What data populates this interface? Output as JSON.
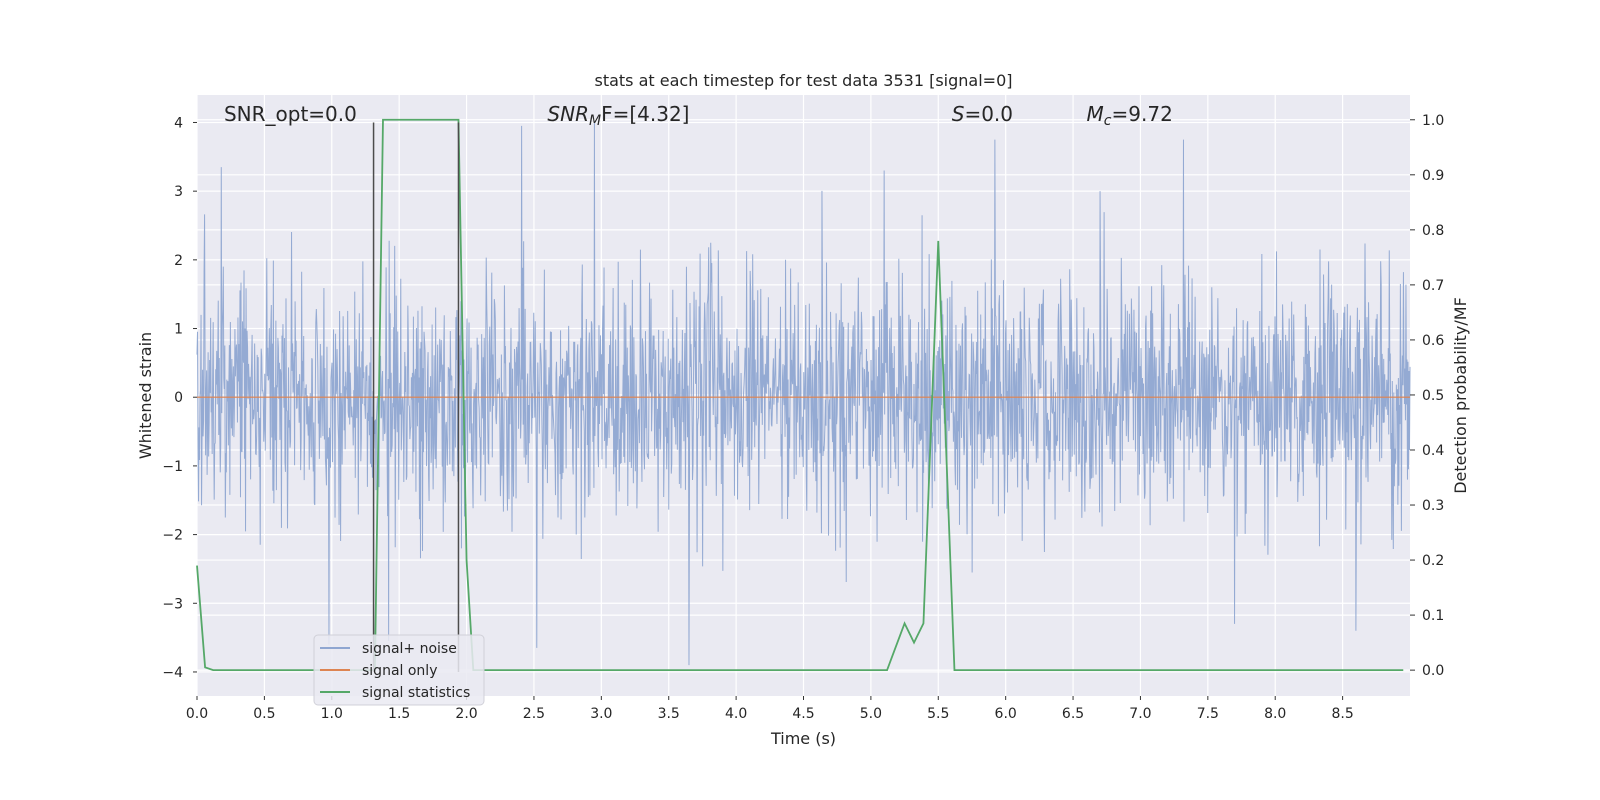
{
  "chart_data": {
    "type": "line",
    "title": "stats at each timestep for test data 3531 [signal=0]",
    "xlabel": "Time (s)",
    "ylabel": "Whitened strain",
    "y2label": "Detection probability/MF",
    "xlim": [
      0.0,
      9.0
    ],
    "ylim": [
      -4.35,
      4.4
    ],
    "y2lim": [
      -0.047,
      1.045
    ],
    "xticks": [
      "0.0",
      "0.5",
      "1.0",
      "1.5",
      "2.0",
      "2.5",
      "3.0",
      "3.5",
      "4.0",
      "4.5",
      "5.0",
      "5.5",
      "6.0",
      "6.5",
      "7.0",
      "7.5",
      "8.0",
      "8.5"
    ],
    "yticks": [
      "−4",
      "−3",
      "−2",
      "−1",
      "0",
      "1",
      "2",
      "3",
      "4"
    ],
    "y2ticks": [
      "0.0",
      "0.1",
      "0.2",
      "0.3",
      "0.4",
      "0.5",
      "0.6",
      "0.7",
      "0.8",
      "0.9",
      "1.0"
    ],
    "grid": true,
    "legend_position": "lower-left",
    "annotations": [
      {
        "prefix": "SNR_opt=0.0",
        "italic": "",
        "sub": "",
        "suffix": "",
        "x": 0.2
      },
      {
        "prefix": "",
        "italic": "SNR",
        "sub": "M",
        "suffix": "F=[4.32]",
        "x": 2.6
      },
      {
        "prefix": "",
        "italic": "S",
        "sub": "",
        "suffix": "=0.0",
        "x": 5.6
      },
      {
        "prefix": "",
        "italic": "M",
        "sub": "c",
        "suffix": "=9.72",
        "x": 6.6
      }
    ],
    "vlines": [
      1.31,
      1.94
    ],
    "series": [
      {
        "name": "signal+ noise",
        "color": "#8fa6d1",
        "axis": "left",
        "style": "noise",
        "sigma": 0.85,
        "duration": 9.0,
        "peaks": [
          [
            0.18,
            3.35
          ],
          [
            2.41,
            3.95
          ],
          [
            2.95,
            4.0
          ],
          [
            3.65,
            -3.9
          ],
          [
            5.1,
            3.3
          ],
          [
            5.38,
            2.65
          ],
          [
            5.92,
            3.75
          ],
          [
            6.7,
            3.0
          ],
          [
            7.32,
            3.75
          ],
          [
            7.7,
            -3.3
          ],
          [
            8.6,
            -3.4
          ],
          [
            1.42,
            -3.55
          ],
          [
            2.52,
            -3.65
          ],
          [
            0.98,
            -3.6
          ]
        ]
      },
      {
        "name": "signal only",
        "color": "#dd8452",
        "axis": "left",
        "style": "flat",
        "value": 0.0
      },
      {
        "name": "signal statistics",
        "color": "#55a868",
        "axis": "right",
        "style": "line",
        "x": [
          0.0,
          0.06,
          0.12,
          1.31,
          1.32,
          1.38,
          1.94,
          2.0,
          2.05,
          5.12,
          5.25,
          5.32,
          5.39,
          5.5,
          5.62,
          8.95
        ],
        "y": [
          0.19,
          0.005,
          0.0,
          0.0,
          0.0,
          1.0,
          1.0,
          0.2,
          0.0,
          0.0,
          0.085,
          0.05,
          0.085,
          0.78,
          0.0,
          0.0
        ]
      }
    ]
  }
}
